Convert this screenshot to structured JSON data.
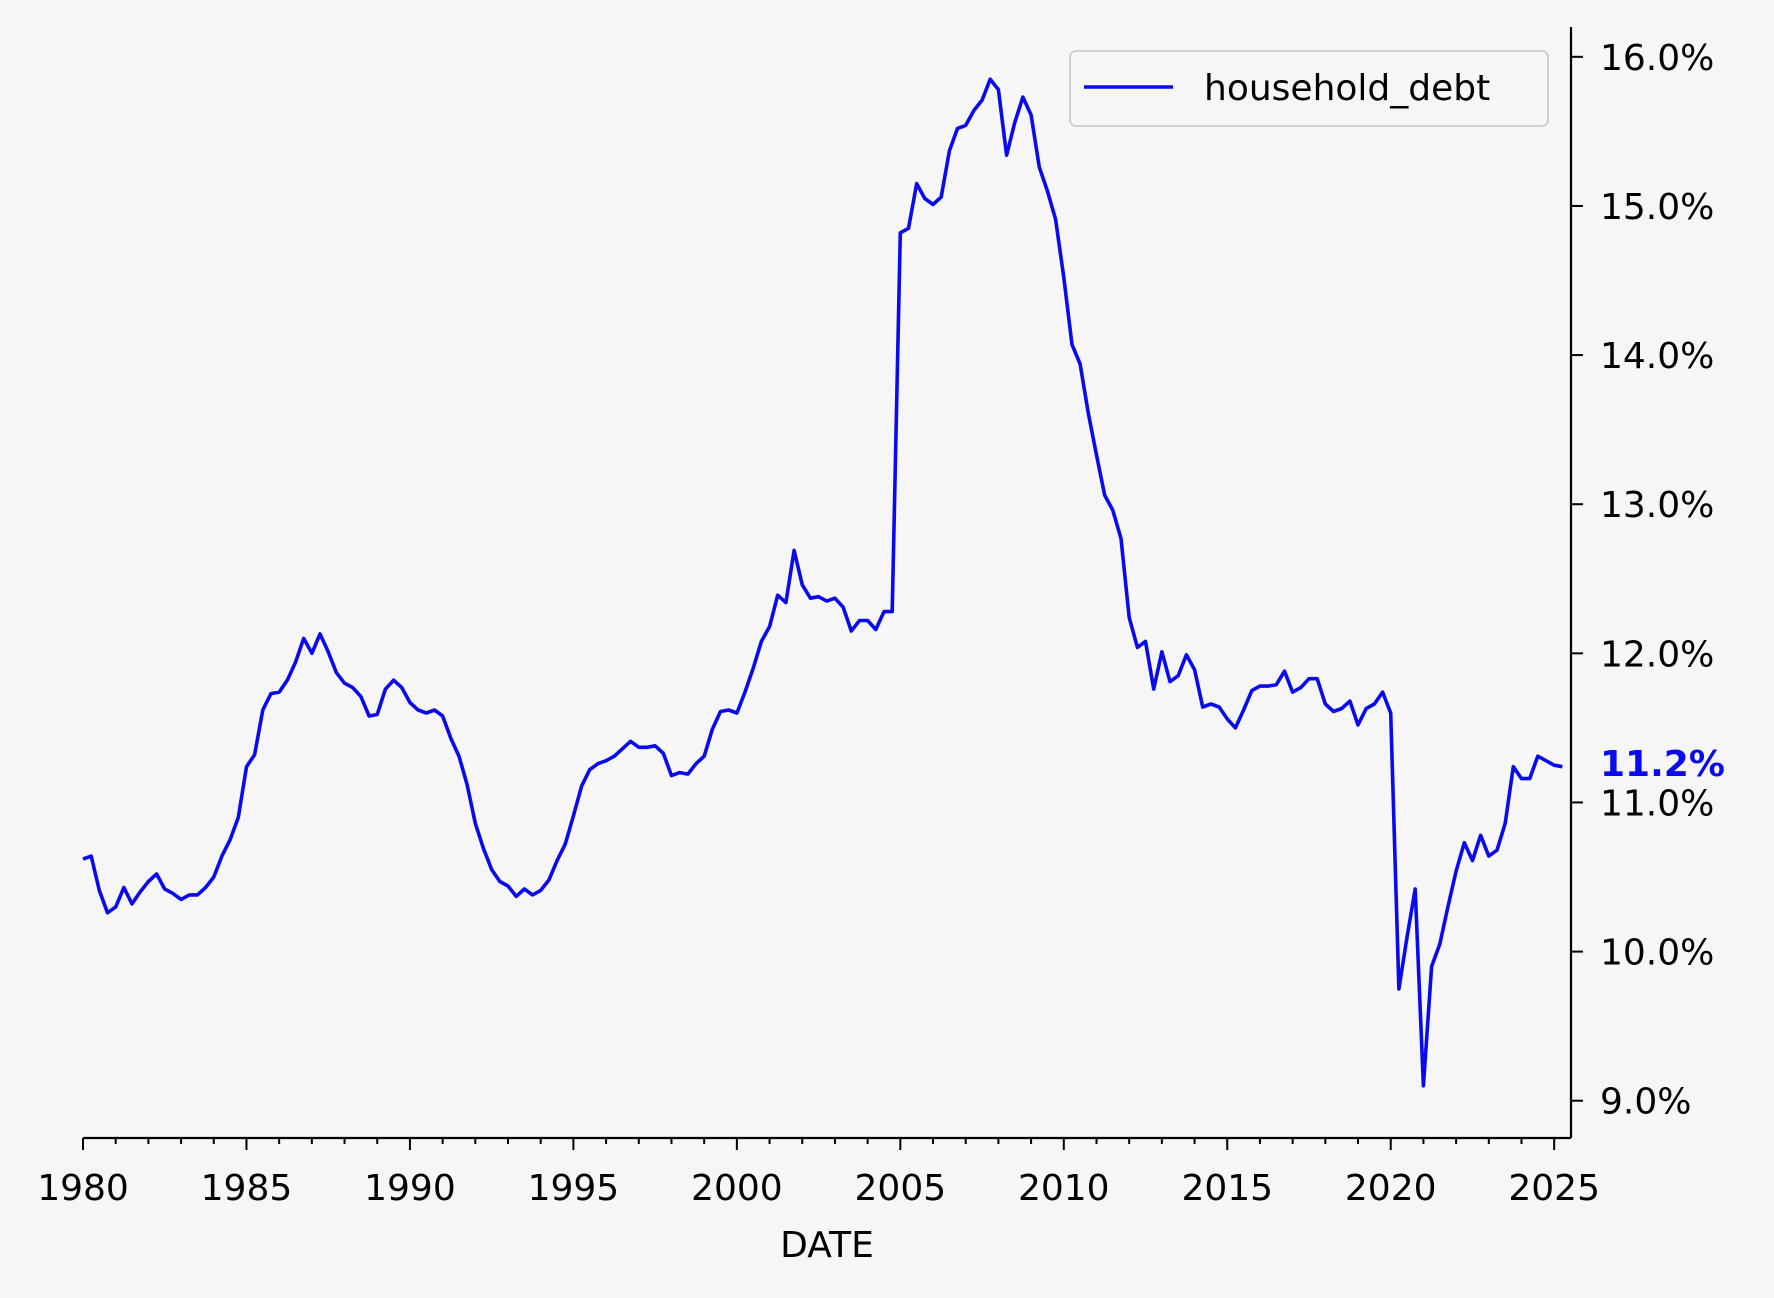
{
  "chart_data": {
    "type": "line",
    "xlabel": "DATE",
    "y_axis_side": "right",
    "x_ticks": [
      "1980",
      "1985",
      "1990",
      "1995",
      "2000",
      "2005",
      "2010",
      "2015",
      "2020",
      "2025"
    ],
    "y_ticks": [
      "9.0%",
      "10.0%",
      "11.0%",
      "12.0%",
      "13.0%",
      "14.0%",
      "15.0%",
      "16.0%"
    ],
    "y_tick_values": [
      9,
      10,
      11,
      12,
      13,
      14,
      15,
      16
    ],
    "xlim": [
      1980.0,
      2025.3
    ],
    "ylim": [
      8.75,
      16.2
    ],
    "legend": {
      "placement": "top-right",
      "entries": [
        "household_debt"
      ]
    },
    "last_value_label": "11.2%",
    "grid": false,
    "series": [
      {
        "name": "household_debt",
        "color": "#0a0aee",
        "x": [
          1980.0,
          1980.25,
          1980.5,
          1980.75,
          1981.0,
          1981.25,
          1981.5,
          1981.75,
          1982.0,
          1982.25,
          1982.5,
          1982.75,
          1983.0,
          1983.25,
          1983.5,
          1983.75,
          1984.0,
          1984.25,
          1984.5,
          1984.75,
          1985.0,
          1985.25,
          1985.5,
          1985.75,
          1986.0,
          1986.25,
          1986.5,
          1986.75,
          1987.0,
          1987.25,
          1987.5,
          1987.75,
          1988.0,
          1988.25,
          1988.5,
          1988.75,
          1989.0,
          1989.25,
          1989.5,
          1989.75,
          1990.0,
          1990.25,
          1990.5,
          1990.75,
          1991.0,
          1991.25,
          1991.5,
          1991.75,
          1992.0,
          1992.25,
          1992.5,
          1992.75,
          1993.0,
          1993.25,
          1993.5,
          1993.75,
          1994.0,
          1994.25,
          1994.5,
          1994.75,
          1995.0,
          1995.25,
          1995.5,
          1995.75,
          1996.0,
          1996.25,
          1996.5,
          1996.75,
          1997.0,
          1997.25,
          1997.5,
          1997.75,
          1998.0,
          1998.25,
          1998.5,
          1998.75,
          1999.0,
          1999.25,
          1999.5,
          1999.75,
          2000.0,
          2000.25,
          2000.5,
          2000.75,
          2001.0,
          2001.25,
          2001.5,
          2001.75,
          2002.0,
          2002.25,
          2002.5,
          2002.75,
          2003.0,
          2003.25,
          2003.5,
          2003.75,
          2004.0,
          2004.25,
          2004.5,
          2004.75,
          2005.0,
          2005.25,
          2005.5,
          2005.75,
          2006.0,
          2006.25,
          2006.5,
          2006.75,
          2007.0,
          2007.25,
          2007.5,
          2007.75,
          2008.0,
          2008.25,
          2008.5,
          2008.75,
          2009.0,
          2009.25,
          2009.5,
          2009.75,
          2010.0,
          2010.25,
          2010.5,
          2010.75,
          2011.0,
          2011.25,
          2011.5,
          2011.75,
          2012.0,
          2012.25,
          2012.5,
          2012.75,
          2013.0,
          2013.25,
          2013.5,
          2013.75,
          2014.0,
          2014.25,
          2014.5,
          2014.75,
          2015.0,
          2015.25,
          2015.5,
          2015.75,
          2016.0,
          2016.25,
          2016.5,
          2016.75,
          2017.0,
          2017.25,
          2017.5,
          2017.75,
          2018.0,
          2018.25,
          2018.5,
          2018.75,
          2019.0,
          2019.25,
          2019.5,
          2019.75,
          2020.0,
          2020.25,
          2020.5,
          2020.75,
          2021.0,
          2021.25,
          2021.5,
          2021.75,
          2022.0,
          2022.25,
          2022.5,
          2022.75,
          2023.0,
          2023.25,
          2023.5,
          2023.75,
          2024.0,
          2024.25,
          2024.5,
          2024.75,
          2025.0,
          2025.25
        ],
        "values": [
          10.62,
          10.64,
          10.41,
          10.26,
          10.3,
          10.43,
          10.32,
          10.4,
          10.47,
          10.52,
          10.42,
          10.39,
          10.35,
          10.38,
          10.38,
          10.43,
          10.5,
          10.64,
          10.75,
          10.9,
          11.24,
          11.32,
          11.62,
          11.73,
          11.74,
          11.82,
          11.94,
          12.1,
          12.0,
          12.13,
          12.01,
          11.87,
          11.8,
          11.77,
          11.71,
          11.58,
          11.59,
          11.76,
          11.82,
          11.77,
          11.67,
          11.62,
          11.6,
          11.62,
          11.58,
          11.43,
          11.31,
          11.12,
          10.86,
          10.69,
          10.55,
          10.47,
          10.44,
          10.37,
          10.42,
          10.38,
          10.41,
          10.48,
          10.61,
          10.72,
          10.91,
          11.11,
          11.22,
          11.26,
          11.28,
          11.31,
          11.36,
          11.41,
          11.37,
          11.37,
          11.38,
          11.33,
          11.18,
          11.2,
          11.19,
          11.26,
          11.31,
          11.49,
          11.61,
          11.62,
          11.6,
          11.74,
          11.9,
          12.08,
          12.18,
          12.39,
          12.34,
          12.69,
          12.46,
          12.37,
          12.38,
          12.35,
          12.37,
          12.31,
          12.15,
          12.22,
          12.22,
          12.16,
          12.28,
          12.28,
          14.82,
          14.85,
          15.15,
          15.05,
          15.01,
          15.06,
          15.37,
          15.52,
          15.54,
          15.64,
          15.71,
          15.85,
          15.78,
          15.34,
          15.56,
          15.73,
          15.61,
          15.26,
          15.1,
          14.91,
          14.52,
          14.07,
          13.94,
          13.61,
          13.33,
          13.06,
          12.96,
          12.77,
          12.24,
          12.04,
          12.08,
          11.76,
          12.01,
          11.81,
          11.85,
          11.99,
          11.89,
          11.64,
          11.66,
          11.64,
          11.56,
          11.5,
          11.62,
          11.75,
          11.78,
          11.78,
          11.79,
          11.88,
          11.74,
          11.77,
          11.83,
          11.83,
          11.66,
          11.61,
          11.63,
          11.68,
          11.52,
          11.63,
          11.66,
          11.74,
          11.6,
          9.75,
          10.1,
          10.42,
          9.1,
          9.9,
          10.05,
          10.3,
          10.54,
          10.73,
          10.61,
          10.78,
          10.64,
          10.68,
          10.86,
          11.24,
          11.16,
          11.16,
          11.31,
          11.28,
          11.25,
          11.24
        ]
      }
    ]
  }
}
